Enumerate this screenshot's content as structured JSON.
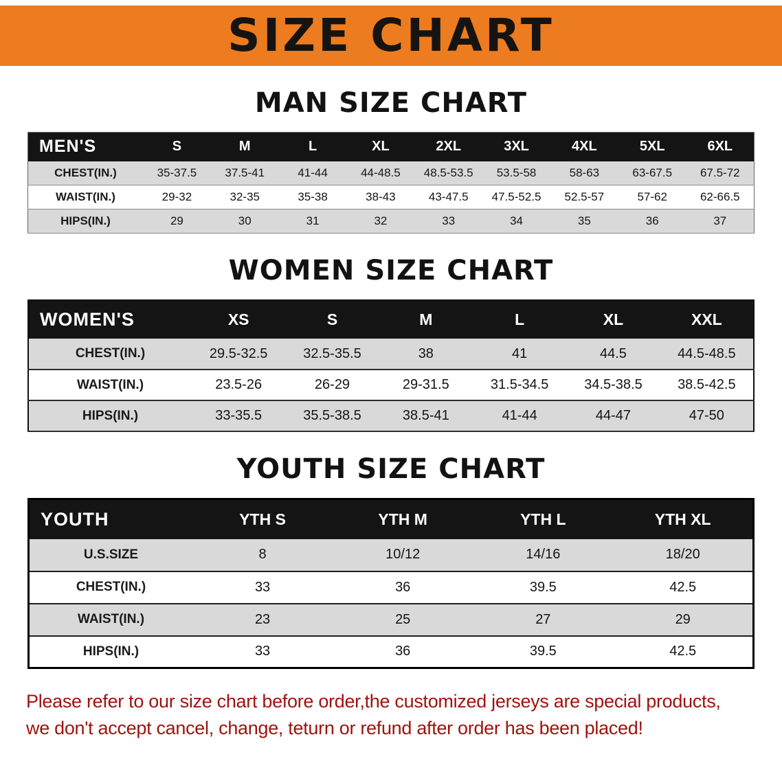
{
  "banner": {
    "title": "SIZE CHART"
  },
  "sections": [
    {
      "heading": "MAN SIZE CHART",
      "table": {
        "header": [
          "MEN'S",
          "S",
          "M",
          "L",
          "XL",
          "2XL",
          "3XL",
          "4XL",
          "5XL",
          "6XL"
        ],
        "rows": [
          [
            "CHEST(IN.)",
            "35-37.5",
            "37.5-41",
            "41-44",
            "44-48.5",
            "48.5-53.5",
            "53.5-58",
            "58-63",
            "63-67.5",
            "67.5-72"
          ],
          [
            "WAIST(IN.)",
            "29-32",
            "32-35",
            "35-38",
            "38-43",
            "43-47.5",
            "47.5-52.5",
            "52.5-57",
            "57-62",
            "62-66.5"
          ],
          [
            "HIPS(IN.)",
            "29",
            "30",
            "31",
            "32",
            "33",
            "34",
            "35",
            "36",
            "37"
          ]
        ]
      }
    },
    {
      "heading": "WOMEN SIZE CHART",
      "table": {
        "header": [
          "WOMEN'S",
          "XS",
          "S",
          "M",
          "L",
          "XL",
          "XXL"
        ],
        "rows": [
          [
            "CHEST(IN.)",
            "29.5-32.5",
            "32.5-35.5",
            "38",
            "41",
            "44.5",
            "44.5-48.5"
          ],
          [
            "WAIST(IN.)",
            "23.5-26",
            "26-29",
            "29-31.5",
            "31.5-34.5",
            "34.5-38.5",
            "38.5-42.5"
          ],
          [
            "HIPS(IN.)",
            "33-35.5",
            "35.5-38.5",
            "38.5-41",
            "41-44",
            "44-47",
            "47-50"
          ]
        ]
      }
    },
    {
      "heading": "YOUTH SIZE CHART",
      "table": {
        "header": [
          "YOUTH",
          "YTH S",
          "YTH M",
          "YTH L",
          "YTH XL"
        ],
        "rows": [
          [
            "U.S.SIZE",
            "8",
            "10/12",
            "14/16",
            "18/20"
          ],
          [
            "CHEST(IN.)",
            "33",
            "36",
            "39.5",
            "42.5"
          ],
          [
            "WAIST(IN.)",
            "23",
            "25",
            "27",
            "29"
          ],
          [
            "HIPS(IN.)",
            "33",
            "36",
            "39.5",
            "42.5"
          ]
        ]
      }
    }
  ],
  "footer": {
    "line1": "Please refer to our size chart before order,the customized jerseys are special products,",
    "line2": "we don't accept cancel, change, teturn or refund after order has been placed!"
  },
  "colors": {
    "banner_bg": "#ec7c1f",
    "table_header_bg": "#141414",
    "row_stripe": "#d9d9d9",
    "footer_text": "#9e120e"
  }
}
